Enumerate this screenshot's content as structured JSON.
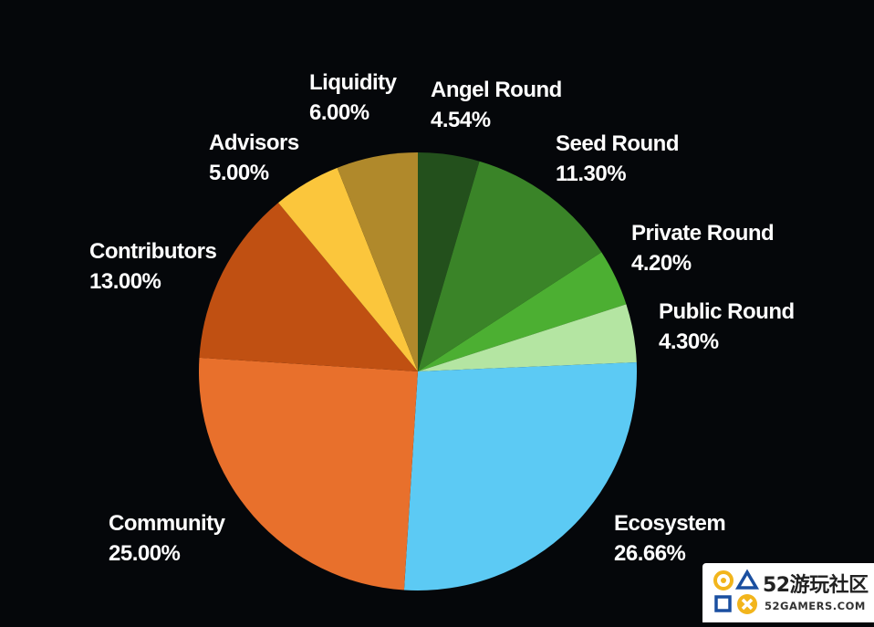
{
  "chart_data": {
    "type": "pie",
    "title": "",
    "start": "top",
    "direction": "clockwise",
    "slices": [
      {
        "label": "Angel Round",
        "value": 4.54,
        "value_label": "4.54%",
        "color": "#23501c"
      },
      {
        "label": "Seed Round",
        "value": 11.3,
        "value_label": "11.30%",
        "color": "#3a8428"
      },
      {
        "label": "Private Round",
        "value": 4.2,
        "value_label": "4.20%",
        "color": "#4caf32"
      },
      {
        "label": "Public Round",
        "value": 4.3,
        "value_label": "4.30%",
        "color": "#b4e5a2"
      },
      {
        "label": "Ecosystem",
        "value": 26.66,
        "value_label": "26.66%",
        "color": "#5ccaf4"
      },
      {
        "label": "Community",
        "value": 25.0,
        "value_label": "25.00%",
        "color": "#e8702c"
      },
      {
        "label": "Contributors",
        "value": 13.0,
        "value_label": "13.00%",
        "color": "#c05012"
      },
      {
        "label": "Advisors",
        "value": 5.0,
        "value_label": "5.00%",
        "color": "#fbc63c"
      },
      {
        "label": "Liquidity",
        "value": 6.0,
        "value_label": "6.00%",
        "color": "#b0892b"
      }
    ]
  },
  "watermark": {
    "title": "52游玩社区",
    "subtitle": "52GAMERS.COM",
    "icon": "52gamers-logo-icon"
  }
}
